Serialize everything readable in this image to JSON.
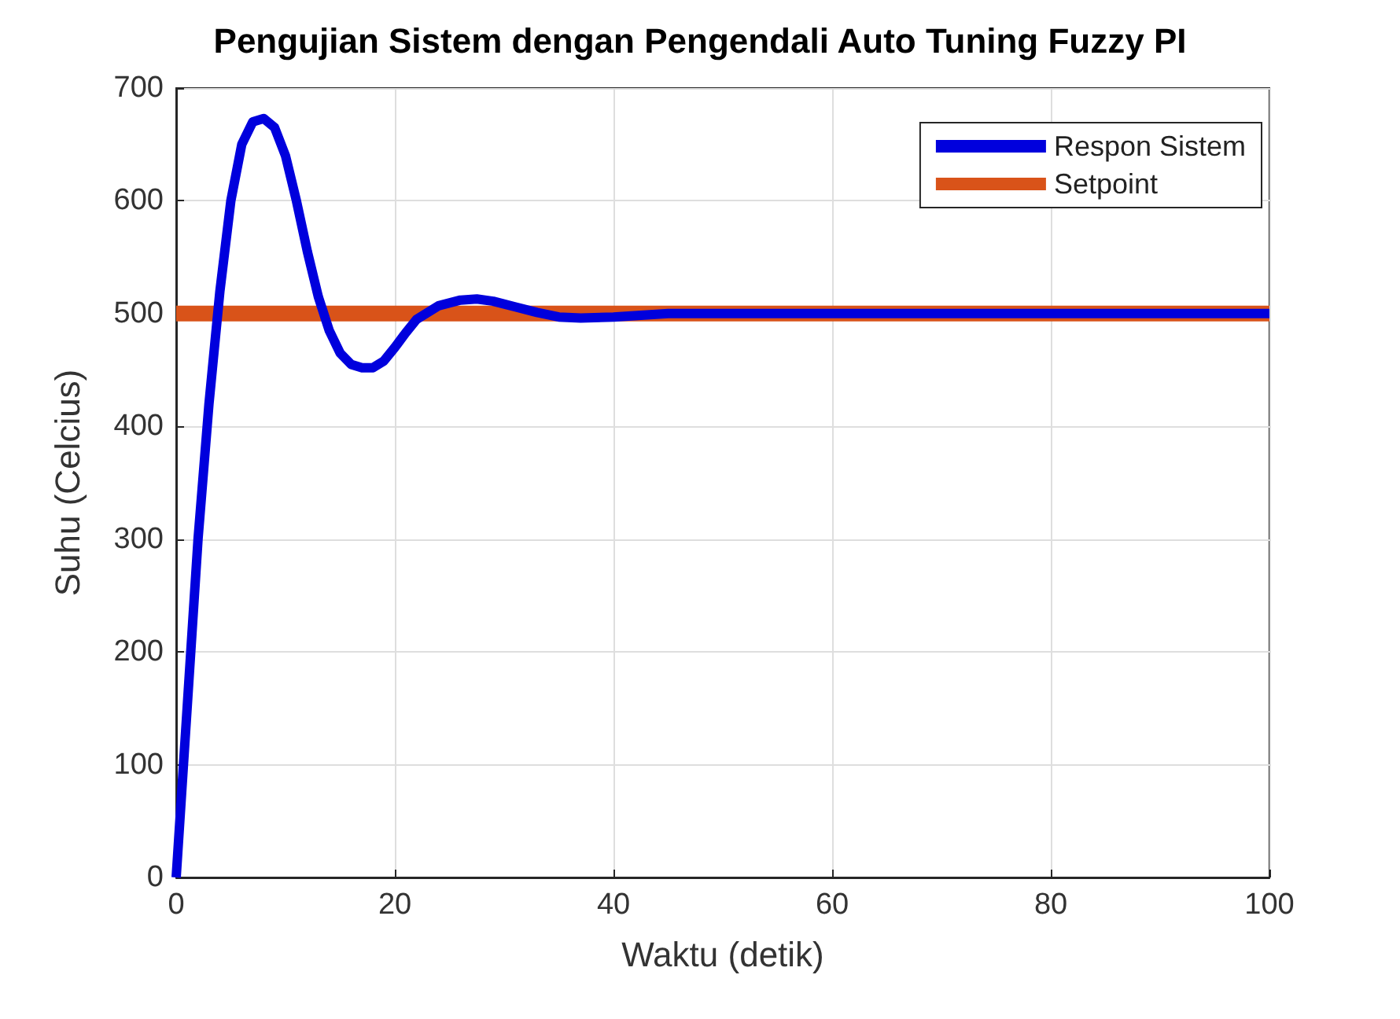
{
  "chart_data": {
    "type": "line",
    "title": "Pengujian Sistem dengan Pengendali Auto Tuning Fuzzy PI",
    "xlabel": "Waktu (detik)",
    "ylabel": "Suhu (Celcius)",
    "xlim": [
      0,
      100
    ],
    "xticks": [
      0,
      20,
      40,
      60,
      80,
      100
    ],
    "ylim": [
      0,
      700
    ],
    "yticks": [
      0,
      100,
      200,
      300,
      400,
      500,
      600,
      700
    ],
    "grid": true,
    "legend": "top right",
    "marker": "none",
    "line_style": "solid",
    "series": [
      {
        "name": "Respon Sistem",
        "color": "#0000dd",
        "x": [
          0,
          1,
          2,
          3,
          4,
          5,
          6,
          7,
          8,
          9,
          10,
          11,
          12,
          13,
          14,
          15,
          16,
          17,
          18,
          19,
          20,
          21,
          22,
          24,
          26,
          27.5,
          29,
          31,
          33,
          35,
          37,
          40,
          45,
          50,
          100
        ],
        "values": [
          0,
          150,
          300,
          420,
          520,
          600,
          650,
          670,
          673,
          665,
          640,
          600,
          555,
          515,
          485,
          465,
          455,
          452,
          452,
          458,
          470,
          483,
          495,
          507,
          512,
          513,
          511,
          506,
          501,
          497,
          496,
          497,
          500,
          500,
          500
        ]
      },
      {
        "name": "Setpoint",
        "color": "#d95319",
        "x": [
          0,
          100
        ],
        "values": [
          500,
          500
        ]
      }
    ]
  }
}
